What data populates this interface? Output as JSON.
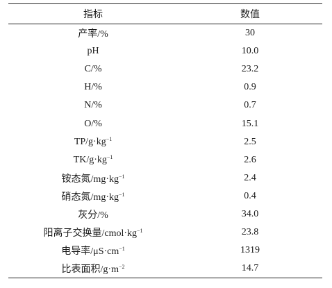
{
  "table": {
    "headers": [
      "指标",
      "数值"
    ],
    "rows": [
      {
        "indicator": "产率/%",
        "value": "30"
      },
      {
        "indicator": "pH",
        "value": "10.0"
      },
      {
        "indicator": "C/%",
        "value": "23.2"
      },
      {
        "indicator": "H/%",
        "value": "0.9"
      },
      {
        "indicator": "N/%",
        "value": "0.7"
      },
      {
        "indicator": "O/%",
        "value": "15.1"
      },
      {
        "indicator": "TP/g·kg",
        "indicator_sup": "−1",
        "value": "2.5"
      },
      {
        "indicator": "TK/g·kg",
        "indicator_sup": "−1",
        "value": "2.6"
      },
      {
        "indicator": "铵态氮/mg·kg",
        "indicator_sup": "−1",
        "value": "2.4"
      },
      {
        "indicator": "硝态氮/mg·kg",
        "indicator_sup": "−1",
        "value": "0.4"
      },
      {
        "indicator": "灰分/%",
        "value": "34.0"
      },
      {
        "indicator": "阳离子交换量/cmol·kg",
        "indicator_sup": "−1",
        "value": "23.8"
      },
      {
        "indicator": "电导率/μS·cm",
        "indicator_sup": "−1",
        "value": "1319"
      },
      {
        "indicator": "比表面积/g·m",
        "indicator_sup": "−2",
        "value": "14.7"
      }
    ]
  }
}
